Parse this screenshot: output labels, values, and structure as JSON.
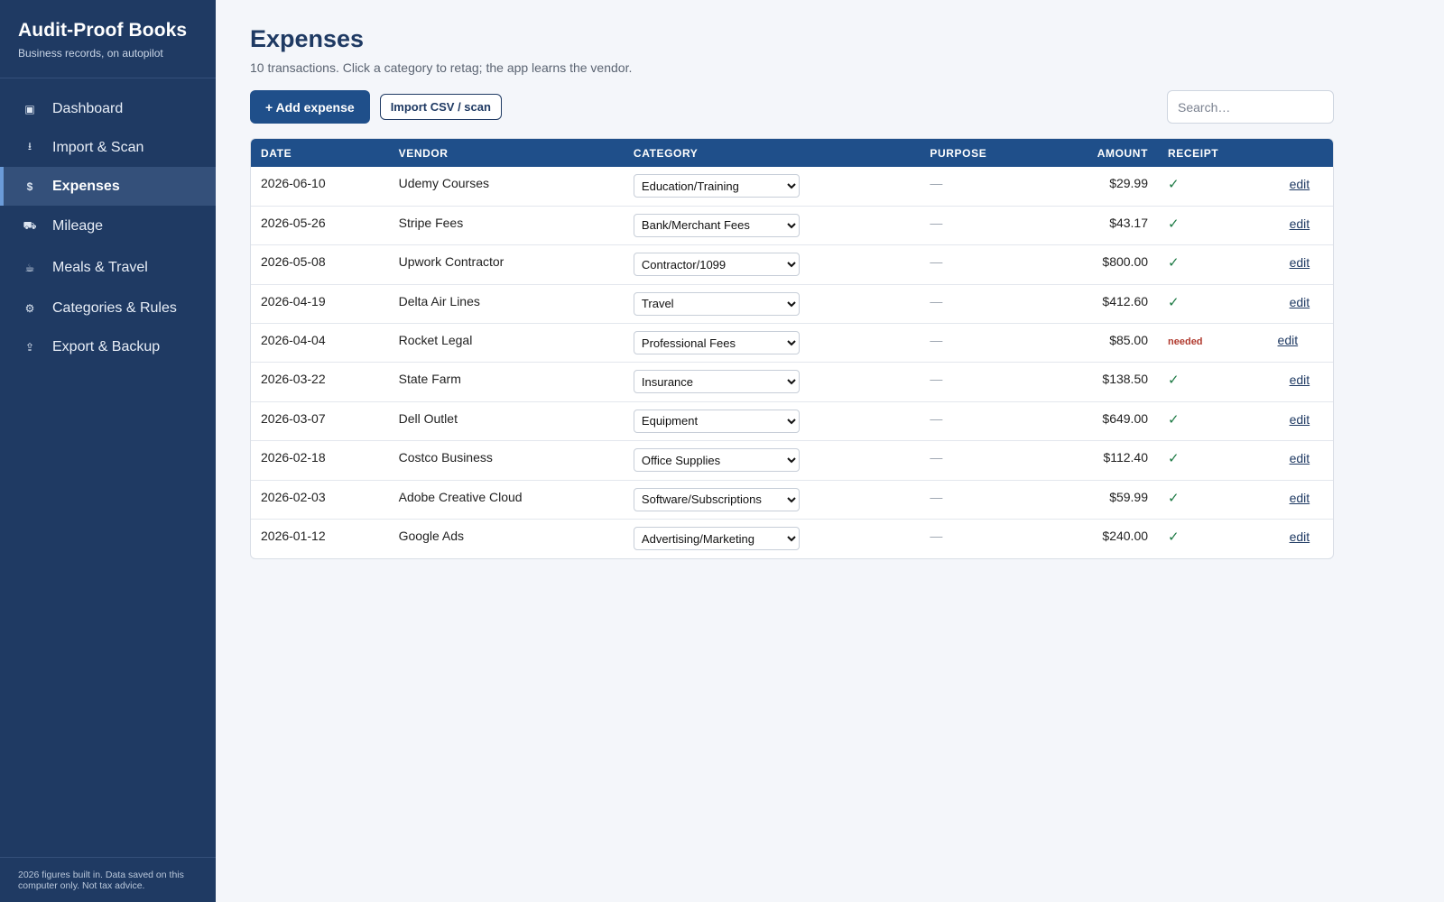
{
  "sidebar": {
    "app_title": "Audit-Proof Books",
    "app_subtitle": "Business records, on autopilot",
    "items": [
      {
        "label": "Dashboard",
        "icon": "dashboard-icon",
        "glyph": "▣"
      },
      {
        "label": "Import & Scan",
        "icon": "import-icon",
        "glyph": "⭳"
      },
      {
        "label": "Expenses",
        "icon": "dollar-icon",
        "glyph": "$",
        "active": true
      },
      {
        "label": "Mileage",
        "icon": "truck-icon",
        "glyph": "⛟"
      },
      {
        "label": "Meals & Travel",
        "icon": "coffee-icon",
        "glyph": "☕"
      },
      {
        "label": "Categories & Rules",
        "icon": "gear-icon",
        "glyph": "⚙"
      },
      {
        "label": "Export & Backup",
        "icon": "export-icon",
        "glyph": "⇪"
      }
    ],
    "footer": "2026 figures built in. Data saved on this computer only. Not tax advice."
  },
  "main": {
    "title": "Expenses",
    "subtitle": "10 transactions. Click a category to retag; the app learns the vendor.",
    "add_button": "+ Add expense",
    "import_button": "Import CSV / scan",
    "search_placeholder": "Search…"
  },
  "table": {
    "headers": {
      "date": "DATE",
      "vendor": "VENDOR",
      "category": "CATEGORY",
      "purpose": "PURPOSE",
      "amount": "AMOUNT",
      "receipt": "RECEIPT"
    },
    "rows": [
      {
        "date": "2026-06-10",
        "vendor": "Udemy Courses",
        "category": "Education/Training",
        "purpose": "—",
        "amount": "$29.99",
        "receipt": "✓",
        "receipt_ok": true,
        "edit": "edit"
      },
      {
        "date": "2026-05-26",
        "vendor": "Stripe Fees",
        "category": "Bank/Merchant Fees",
        "purpose": "—",
        "amount": "$43.17",
        "receipt": "✓",
        "receipt_ok": true,
        "edit": "edit"
      },
      {
        "date": "2026-05-08",
        "vendor": "Upwork Contractor",
        "category": "Contractor/1099",
        "purpose": "—",
        "amount": "$800.00",
        "receipt": "✓",
        "receipt_ok": true,
        "edit": "edit"
      },
      {
        "date": "2026-04-19",
        "vendor": "Delta Air Lines",
        "category": "Travel",
        "purpose": "—",
        "amount": "$412.60",
        "receipt": "✓",
        "receipt_ok": true,
        "edit": "edit"
      },
      {
        "date": "2026-04-04",
        "vendor": "Rocket Legal",
        "category": "Professional Fees",
        "purpose": "—",
        "amount": "$85.00",
        "receipt": "needed",
        "receipt_ok": false,
        "edit": "edit"
      },
      {
        "date": "2026-03-22",
        "vendor": "State Farm",
        "category": "Insurance",
        "purpose": "—",
        "amount": "$138.50",
        "receipt": "✓",
        "receipt_ok": true,
        "edit": "edit"
      },
      {
        "date": "2026-03-07",
        "vendor": "Dell Outlet",
        "category": "Equipment",
        "purpose": "—",
        "amount": "$649.00",
        "receipt": "✓",
        "receipt_ok": true,
        "edit": "edit"
      },
      {
        "date": "2026-02-18",
        "vendor": "Costco Business",
        "category": "Office Supplies",
        "purpose": "—",
        "amount": "$112.40",
        "receipt": "✓",
        "receipt_ok": true,
        "edit": "edit"
      },
      {
        "date": "2026-02-03",
        "vendor": "Adobe Creative Cloud",
        "category": "Software/Subscriptions",
        "purpose": "—",
        "amount": "$59.99",
        "receipt": "✓",
        "receipt_ok": true,
        "edit": "edit"
      },
      {
        "date": "2026-01-12",
        "vendor": "Google Ads",
        "category": "Advertising/Marketing",
        "purpose": "—",
        "amount": "$240.00",
        "receipt": "✓",
        "receipt_ok": true,
        "edit": "edit"
      }
    ]
  },
  "colors": {
    "sidebar_bg": "#1f3a63",
    "accent": "#1f4f8a",
    "receipt_ok": "#1e7a45",
    "receipt_needed": "#b03a2e"
  }
}
